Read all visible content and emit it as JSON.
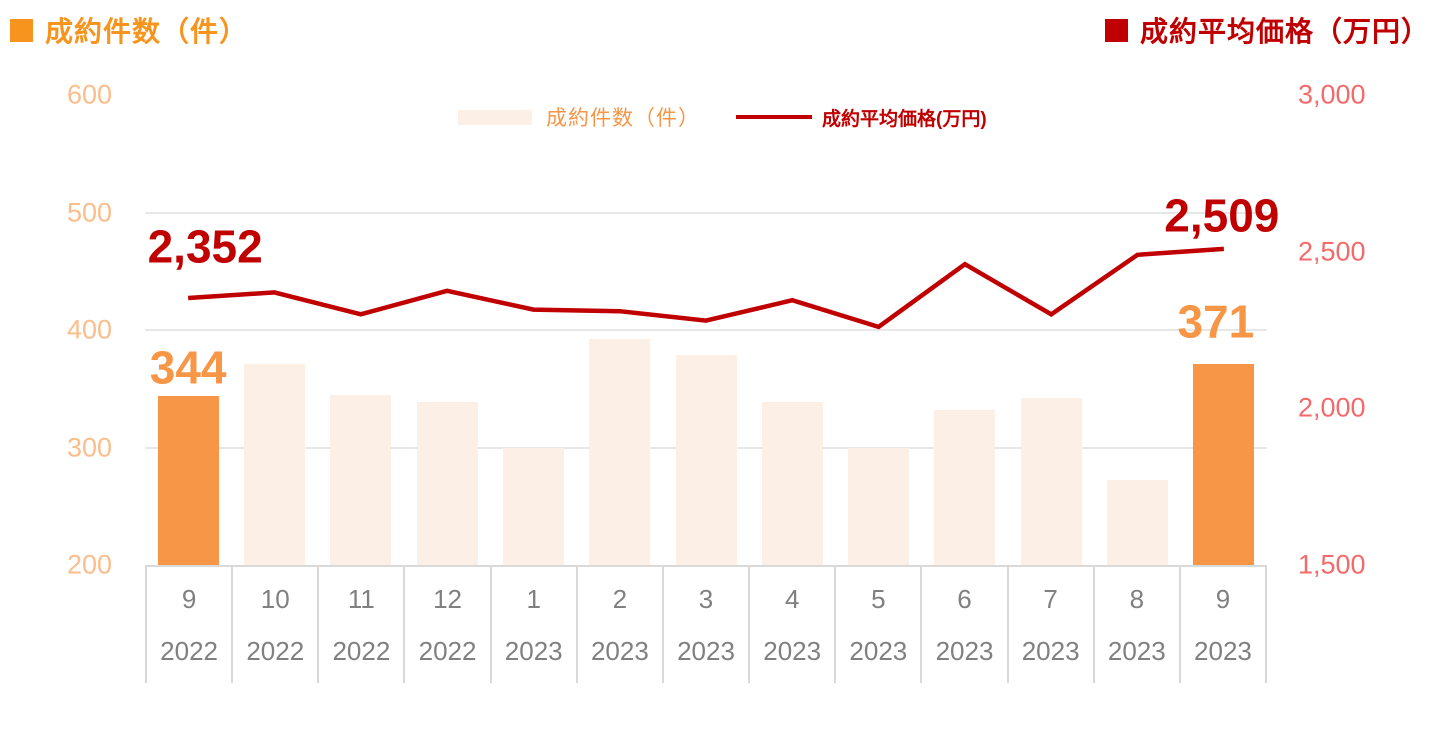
{
  "titles": {
    "left": "成約件数（件）",
    "right": "成約平均価格（万円）"
  },
  "legend": {
    "bars_label": "成約件数（件）",
    "line_label": "成約平均価格(万円)"
  },
  "chart_data": {
    "type": "bar+line combo",
    "categories": {
      "months": [
        "9",
        "10",
        "11",
        "12",
        "1",
        "2",
        "3",
        "4",
        "5",
        "6",
        "7",
        "8",
        "9"
      ],
      "years": [
        "2022",
        "2022",
        "2022",
        "2022",
        "2023",
        "2023",
        "2023",
        "2023",
        "2023",
        "2023",
        "2023",
        "2023",
        "2023"
      ]
    },
    "series": [
      {
        "name": "成約件数（件）",
        "type": "bar",
        "axis": "left",
        "values": [
          344,
          371,
          345,
          339,
          300,
          392,
          379,
          339,
          300,
          332,
          342,
          272,
          371
        ],
        "highlight_indices": [
          0,
          12
        ]
      },
      {
        "name": "成約平均価格(万円)",
        "type": "line",
        "axis": "right",
        "values": [
          2352,
          2370,
          2300,
          2375,
          2315,
          2310,
          2280,
          2345,
          2260,
          2460,
          2300,
          2490,
          2509
        ]
      }
    ],
    "left_axis": {
      "label": "成約件数（件）",
      "min": 200,
      "max": 600,
      "ticks": [
        600,
        500,
        400,
        300,
        200
      ]
    },
    "right_axis": {
      "label": "成約平均価格（万円）",
      "min": 1500,
      "max": 3000,
      "ticks": [
        3000,
        2500,
        2000,
        1500
      ]
    },
    "callouts": [
      {
        "series": "bars",
        "index": 0,
        "text": "344"
      },
      {
        "series": "bars",
        "index": 12,
        "text": "371"
      },
      {
        "series": "line",
        "index": 0,
        "text": "2,352"
      },
      {
        "series": "line",
        "index": 12,
        "text": "2,509"
      }
    ],
    "grid": "horizontal only",
    "legend_position": "top-center"
  },
  "colors": {
    "orange": "#F79646",
    "orange_title": "#F7941E",
    "bar_pale": "#FCF0E6",
    "dark_red": "#C00000",
    "left_tick": "#FABE8C",
    "right_tick": "#F46A6A",
    "x_text": "#808080",
    "gridline": "#E7E7E7",
    "axis_border": "#D9D9D9"
  }
}
